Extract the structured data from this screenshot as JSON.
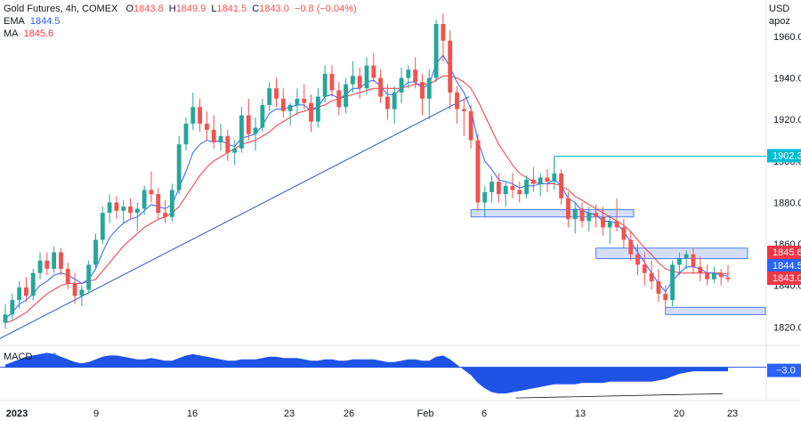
{
  "legend": {
    "symbol": "Gold Futures, 4h, COMEX",
    "ohlc": {
      "o_label": "O",
      "o": "1843.8",
      "h_label": "H",
      "h": "1849.9",
      "l_label": "L",
      "l": "1841.5",
      "c_label": "C",
      "c": "1843.0",
      "change": "−0.8 (−0.04%)"
    },
    "ema_label": "EMA",
    "ema_value": "1844.5",
    "ma_label": "MA",
    "ma_value": "1845.6",
    "macd_label": "MACD",
    "macd_value": "−3.0"
  },
  "axis": {
    "unit_top": "USD",
    "unit_bottom": "apoz"
  },
  "colors": {
    "up": "#26a69a",
    "down": "#ef5350",
    "ema": "#2962ff",
    "ma": "#f23645",
    "trend": "#2a5ab8",
    "zone_fill": "#d4def7",
    "zone_stroke": "#2962ff",
    "hline": "#00bcd4",
    "macd_area": "#1e53e5"
  },
  "price_tags": [
    {
      "label": "1902.3",
      "color": "#00bcd4"
    },
    {
      "label": "1845.6",
      "color": "#f23645"
    },
    {
      "label": "1844.5",
      "color": "#2962ff"
    },
    {
      "label": "1843.0",
      "color": "#f23645"
    }
  ],
  "macd_tags": [
    {
      "label": "−3.0",
      "color": "#2962ff"
    }
  ],
  "chart_data": {
    "type": "candlestick",
    "title": "Gold Futures, 4h, COMEX",
    "ylim": [
      1812,
      1975
    ],
    "y_ticks": [
      1820,
      1840,
      1860,
      1880,
      1900,
      1920,
      1940,
      1960
    ],
    "x_ticks": [
      "2023",
      "9",
      "16",
      "23",
      "26",
      "Feb",
      "6",
      "13",
      "20",
      "23"
    ],
    "grid": false,
    "candles": [
      [
        1822,
        1831,
        1819,
        1826
      ],
      [
        1826,
        1836,
        1823,
        1833
      ],
      [
        1833,
        1842,
        1829,
        1839
      ],
      [
        1839,
        1844,
        1832,
        1835
      ],
      [
        1835,
        1848,
        1833,
        1846
      ],
      [
        1846,
        1856,
        1843,
        1852
      ],
      [
        1852,
        1856,
        1845,
        1848
      ],
      [
        1848,
        1859,
        1846,
        1856
      ],
      [
        1856,
        1858,
        1845,
        1848
      ],
      [
        1848,
        1851,
        1838,
        1841
      ],
      [
        1841,
        1846,
        1831,
        1835
      ],
      [
        1835,
        1840,
        1830,
        1838
      ],
      [
        1838,
        1852,
        1836,
        1850
      ],
      [
        1850,
        1865,
        1848,
        1862
      ],
      [
        1862,
        1878,
        1860,
        1875
      ],
      [
        1875,
        1884,
        1870,
        1880
      ],
      [
        1880,
        1883,
        1872,
        1876
      ],
      [
        1876,
        1881,
        1870,
        1878
      ],
      [
        1878,
        1882,
        1872,
        1875
      ],
      [
        1875,
        1880,
        1866,
        1877
      ],
      [
        1877,
        1888,
        1874,
        1886
      ],
      [
        1886,
        1895,
        1880,
        1884
      ],
      [
        1884,
        1887,
        1872,
        1875
      ],
      [
        1875,
        1881,
        1870,
        1873
      ],
      [
        1873,
        1889,
        1871,
        1886
      ],
      [
        1886,
        1912,
        1884,
        1908
      ],
      [
        1908,
        1921,
        1905,
        1918
      ],
      [
        1918,
        1933,
        1915,
        1926
      ],
      [
        1926,
        1930,
        1914,
        1918
      ],
      [
        1918,
        1924,
        1910,
        1915
      ],
      [
        1915,
        1922,
        1906,
        1909
      ],
      [
        1909,
        1918,
        1905,
        1912
      ],
      [
        1912,
        1915,
        1900,
        1904
      ],
      [
        1904,
        1910,
        1898,
        1906
      ],
      [
        1906,
        1926,
        1904,
        1922
      ],
      [
        1922,
        1930,
        1910,
        1913
      ],
      [
        1913,
        1921,
        1905,
        1916
      ],
      [
        1916,
        1930,
        1914,
        1927
      ],
      [
        1927,
        1938,
        1924,
        1935
      ],
      [
        1935,
        1940,
        1926,
        1930
      ],
      [
        1930,
        1935,
        1921,
        1924
      ],
      [
        1924,
        1928,
        1917,
        1927
      ],
      [
        1927,
        1935,
        1922,
        1930
      ],
      [
        1930,
        1937,
        1925,
        1928
      ],
      [
        1928,
        1932,
        1914,
        1919
      ],
      [
        1919,
        1935,
        1916,
        1931
      ],
      [
        1931,
        1946,
        1928,
        1942
      ],
      [
        1942,
        1946,
        1931,
        1934
      ],
      [
        1934,
        1938,
        1922,
        1926
      ],
      [
        1926,
        1940,
        1923,
        1937
      ],
      [
        1937,
        1948,
        1933,
        1941
      ],
      [
        1941,
        1945,
        1930,
        1935
      ],
      [
        1935,
        1950,
        1932,
        1946
      ],
      [
        1946,
        1952,
        1938,
        1940
      ],
      [
        1940,
        1944,
        1928,
        1931
      ],
      [
        1931,
        1937,
        1920,
        1925
      ],
      [
        1925,
        1936,
        1918,
        1933
      ],
      [
        1933,
        1945,
        1928,
        1940
      ],
      [
        1940,
        1946,
        1935,
        1944
      ],
      [
        1944,
        1950,
        1935,
        1938
      ],
      [
        1938,
        1942,
        1922,
        1930
      ],
      [
        1930,
        1944,
        1920,
        1940
      ],
      [
        1940,
        1968,
        1938,
        1966
      ],
      [
        1966,
        1971,
        1948,
        1958
      ],
      [
        1958,
        1963,
        1925,
        1933
      ],
      [
        1933,
        1936,
        1918,
        1925
      ],
      [
        1925,
        1930,
        1912,
        1924
      ],
      [
        1924,
        1927,
        1906,
        1910
      ],
      [
        1910,
        1913,
        1876,
        1880
      ],
      [
        1880,
        1888,
        1873,
        1885
      ],
      [
        1885,
        1893,
        1880,
        1890
      ],
      [
        1890,
        1894,
        1880,
        1884
      ],
      [
        1884,
        1890,
        1878,
        1888
      ],
      [
        1888,
        1894,
        1882,
        1886
      ],
      [
        1886,
        1890,
        1880,
        1884
      ],
      [
        1884,
        1893,
        1882,
        1891
      ],
      [
        1891,
        1897,
        1885,
        1889
      ],
      [
        1889,
        1894,
        1883,
        1892
      ],
      [
        1892,
        1896,
        1885,
        1890
      ],
      [
        1890,
        1902,
        1886,
        1894
      ],
      [
        1894,
        1896,
        1879,
        1882
      ],
      [
        1882,
        1885,
        1868,
        1872
      ],
      [
        1872,
        1880,
        1865,
        1877
      ],
      [
        1877,
        1880,
        1868,
        1871
      ],
      [
        1871,
        1878,
        1866,
        1875
      ],
      [
        1875,
        1879,
        1868,
        1873
      ],
      [
        1873,
        1878,
        1864,
        1868
      ],
      [
        1868,
        1874,
        1860,
        1871
      ],
      [
        1871,
        1882,
        1866,
        1868
      ],
      [
        1868,
        1872,
        1858,
        1862
      ],
      [
        1862,
        1866,
        1852,
        1855
      ],
      [
        1855,
        1860,
        1845,
        1850
      ],
      [
        1850,
        1856,
        1840,
        1846
      ],
      [
        1846,
        1852,
        1838,
        1842
      ],
      [
        1842,
        1848,
        1832,
        1836
      ],
      [
        1836,
        1840,
        1828,
        1833
      ],
      [
        1833,
        1852,
        1830,
        1850
      ],
      [
        1850,
        1856,
        1845,
        1853
      ],
      [
        1853,
        1857,
        1848,
        1855
      ],
      [
        1855,
        1858,
        1846,
        1849
      ],
      [
        1849,
        1854,
        1842,
        1846
      ],
      [
        1846,
        1850,
        1840,
        1843
      ],
      [
        1843,
        1849,
        1841,
        1846
      ],
      [
        1846,
        1848,
        1840,
        1844
      ],
      [
        1843.8,
        1849.9,
        1841.5,
        1843.0
      ]
    ],
    "ema": [
      1824,
      1827,
      1831,
      1833,
      1836,
      1840,
      1842,
      1845,
      1846,
      1845,
      1843,
      1841,
      1843,
      1848,
      1856,
      1863,
      1867,
      1870,
      1872,
      1873,
      1876,
      1879,
      1878,
      1877,
      1879,
      1887,
      1895,
      1904,
      1908,
      1910,
      1909,
      1910,
      1908,
      1907,
      1911,
      1912,
      1913,
      1917,
      1923,
      1925,
      1925,
      1926,
      1927,
      1927,
      1924,
      1926,
      1931,
      1932,
      1930,
      1932,
      1935,
      1935,
      1938,
      1939,
      1936,
      1932,
      1932,
      1935,
      1938,
      1938,
      1935,
      1937,
      1947,
      1951,
      1945,
      1938,
      1933,
      1925,
      1910,
      1900,
      1896,
      1891,
      1890,
      1889,
      1887,
      1888,
      1888,
      1889,
      1889,
      1891,
      1888,
      1882,
      1880,
      1876,
      1875,
      1874,
      1871,
      1871,
      1870,
      1866,
      1861,
      1856,
      1851,
      1846,
      1841,
      1837,
      1842,
      1846,
      1849,
      1849,
      1848,
      1846,
      1846,
      1845,
      1844.5
    ],
    "ma": [
      1822,
      1823,
      1825,
      1827,
      1830,
      1833,
      1836,
      1838,
      1840,
      1841,
      1841,
      1841,
      1842,
      1843,
      1847,
      1851,
      1855,
      1859,
      1862,
      1865,
      1868,
      1870,
      1872,
      1873,
      1875,
      1878,
      1883,
      1888,
      1893,
      1897,
      1900,
      1902,
      1904,
      1906,
      1908,
      1909,
      1910,
      1912,
      1914,
      1917,
      1919,
      1921,
      1923,
      1924,
      1925,
      1926,
      1927,
      1929,
      1930,
      1931,
      1932,
      1933,
      1934,
      1935,
      1935,
      1935,
      1935,
      1935,
      1936,
      1937,
      1937,
      1937,
      1939,
      1941,
      1941,
      1940,
      1938,
      1935,
      1929,
      1922,
      1915,
      1908,
      1903,
      1898,
      1894,
      1892,
      1890,
      1889,
      1889,
      1889,
      1888,
      1886,
      1883,
      1881,
      1879,
      1877,
      1875,
      1873,
      1871,
      1869,
      1866,
      1862,
      1858,
      1855,
      1851,
      1848,
      1847,
      1846,
      1846,
      1846,
      1846,
      1846,
      1846,
      1846,
      1845.6
    ],
    "macd": [
      2,
      4,
      6,
      8,
      9,
      10,
      11,
      10,
      8,
      6,
      4,
      3,
      4,
      6,
      8,
      9,
      9,
      8,
      7,
      6,
      6,
      7,
      6,
      5,
      5,
      7,
      9,
      10,
      9,
      8,
      7,
      6,
      5,
      5,
      6,
      6,
      6,
      7,
      8,
      8,
      7,
      7,
      7,
      6,
      5,
      5,
      6,
      6,
      5,
      5,
      6,
      6,
      6,
      6,
      5,
      4,
      4,
      5,
      6,
      6,
      5,
      5,
      8,
      9,
      6,
      2,
      -2,
      -6,
      -12,
      -16,
      -19,
      -20,
      -20,
      -19,
      -18,
      -17,
      -16,
      -15,
      -14,
      -13,
      -13,
      -13,
      -13,
      -12,
      -12,
      -12,
      -12,
      -11,
      -11,
      -11,
      -11,
      -11,
      -11,
      -11,
      -10,
      -9,
      -7,
      -5,
      -4,
      -3,
      -3,
      -3,
      -3,
      -3,
      -3.0
    ],
    "trendline": [
      {
        "from_index": 0,
        "from_y": 1814,
        "to_index": 66,
        "to_y": 1931
      }
    ],
    "levels": [
      {
        "value": 1902.3,
        "from_index": 79,
        "to_index": 105,
        "type": "line"
      }
    ],
    "zones": [
      {
        "from_index": 67,
        "to_index": 87,
        "low": 1873,
        "high": 1876.5
      },
      {
        "from_index": 85,
        "to_index": 105,
        "low": 1853,
        "high": 1858
      },
      {
        "from_index": 95,
        "to_index": 105,
        "low": 1826,
        "high": 1829.5
      }
    ],
    "macd_trendline": [
      {
        "from_index": 74,
        "from_y": -20,
        "to_index": 104,
        "to_y": -12
      }
    ],
    "macd_ylim": [
      -24,
      14
    ]
  }
}
